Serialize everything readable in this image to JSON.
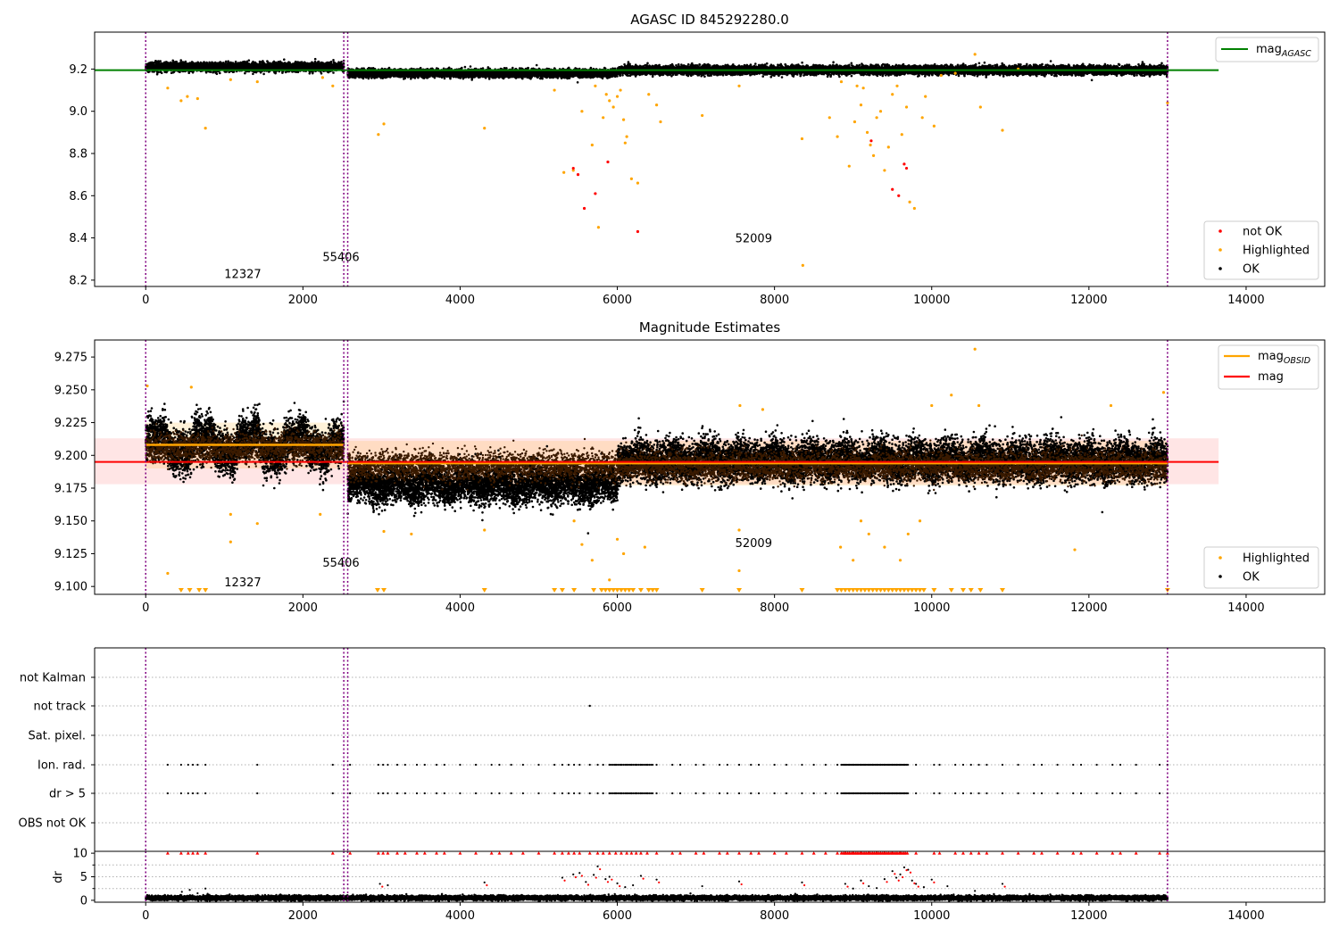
{
  "colors": {
    "ok": "#000000",
    "highlighted": "#ffa500",
    "not_ok": "#ff0000",
    "agasc_line": "#008000",
    "mag_line": "#ff0000",
    "obsid_line": "#ffa500",
    "obs_boundary": "#800080"
  },
  "chart_data": [
    {
      "type": "scatter",
      "title": "AGASC ID 845292280.0",
      "xlim": [
        -650,
        15000
      ],
      "ylim": [
        8.17,
        9.375
      ],
      "xticks": [
        0,
        2000,
        4000,
        6000,
        8000,
        10000,
        12000,
        14000
      ],
      "yticks": [
        8.2,
        8.4,
        8.6,
        8.8,
        9.0,
        9.2
      ],
      "xticklabels": [
        "0",
        "2000",
        "4000",
        "6000",
        "8000",
        "10000",
        "12000",
        "14000"
      ],
      "yticklabels": [
        "8.2",
        "8.4",
        "8.6",
        "8.8",
        "9.0",
        "9.2"
      ],
      "obs_boundaries": [
        0,
        2520,
        2570,
        13000
      ],
      "reference_line": {
        "name": "mag",
        "subscript": "AGASC",
        "y": 9.195,
        "x": [
          -650,
          13650
        ]
      },
      "legend_lines": [
        {
          "name": "mag",
          "subscript": "AGASC"
        }
      ],
      "legend_points": [
        {
          "name": "not OK",
          "key": "not_ok"
        },
        {
          "name": "Highlighted",
          "key": "highlighted"
        },
        {
          "name": "OK",
          "key": "ok"
        }
      ],
      "obsid_labels": [
        {
          "text": "12327",
          "x": 1000,
          "y": 8.21
        },
        {
          "text": "55406",
          "x": 2250,
          "y": 8.29
        },
        {
          "text": "52009",
          "x": 7500,
          "y": 8.38
        }
      ],
      "ok_bands": [
        {
          "x": [
            0,
            2520
          ],
          "y_center": 9.21,
          "spread": 0.022
        },
        {
          "x": [
            2570,
            6000
          ],
          "y_center": 9.18,
          "spread": 0.02
        },
        {
          "x": [
            6000,
            13000
          ],
          "y_center": 9.195,
          "spread": 0.022
        }
      ],
      "highlighted_points": [
        [
          280,
          9.11
        ],
        [
          450,
          9.05
        ],
        [
          530,
          9.07
        ],
        [
          660,
          9.06
        ],
        [
          760,
          8.92
        ],
        [
          1080,
          9.15
        ],
        [
          1420,
          9.14
        ],
        [
          2250,
          9.16
        ],
        [
          2380,
          9.12
        ],
        [
          2960,
          8.89
        ],
        [
          3030,
          8.94
        ],
        [
          4310,
          8.92
        ],
        [
          5200,
          9.1
        ],
        [
          5320,
          8.71
        ],
        [
          5440,
          8.72
        ],
        [
          5550,
          9.0
        ],
        [
          5680,
          8.84
        ],
        [
          5720,
          9.12
        ],
        [
          5760,
          8.45
        ],
        [
          5820,
          8.97
        ],
        [
          5860,
          9.08
        ],
        [
          5900,
          9.05
        ],
        [
          5950,
          9.02
        ],
        [
          6000,
          9.07
        ],
        [
          6040,
          9.1
        ],
        [
          6080,
          8.96
        ],
        [
          6100,
          8.85
        ],
        [
          6120,
          8.88
        ],
        [
          6180,
          8.68
        ],
        [
          6260,
          8.66
        ],
        [
          6400,
          9.08
        ],
        [
          6500,
          9.03
        ],
        [
          6550,
          8.95
        ],
        [
          7080,
          8.98
        ],
        [
          7550,
          9.12
        ],
        [
          8350,
          8.87
        ],
        [
          8360,
          8.27
        ],
        [
          8700,
          8.97
        ],
        [
          8800,
          8.88
        ],
        [
          8850,
          9.14
        ],
        [
          8950,
          8.74
        ],
        [
          9020,
          8.95
        ],
        [
          9050,
          9.12
        ],
        [
          9100,
          9.03
        ],
        [
          9130,
          9.11
        ],
        [
          9180,
          8.9
        ],
        [
          9220,
          8.84
        ],
        [
          9260,
          8.79
        ],
        [
          9300,
          8.97
        ],
        [
          9350,
          9.0
        ],
        [
          9400,
          8.72
        ],
        [
          9450,
          8.83
        ],
        [
          9500,
          9.08
        ],
        [
          9560,
          9.12
        ],
        [
          9620,
          8.89
        ],
        [
          9680,
          9.02
        ],
        [
          9720,
          8.57
        ],
        [
          9780,
          8.54
        ],
        [
          9880,
          8.97
        ],
        [
          9920,
          9.07
        ],
        [
          10030,
          8.93
        ],
        [
          10120,
          9.17
        ],
        [
          10300,
          9.18
        ],
        [
          10550,
          9.27
        ],
        [
          10620,
          9.02
        ],
        [
          10900,
          8.91
        ],
        [
          11100,
          9.2
        ],
        [
          13000,
          9.04
        ]
      ],
      "not_ok_points": [
        [
          5440,
          8.73
        ],
        [
          5500,
          8.7
        ],
        [
          5580,
          8.54
        ],
        [
          5720,
          8.61
        ],
        [
          5880,
          8.76
        ],
        [
          6260,
          8.43
        ],
        [
          9230,
          8.86
        ],
        [
          9500,
          8.63
        ],
        [
          9580,
          8.6
        ],
        [
          9650,
          8.75
        ],
        [
          9680,
          8.73
        ]
      ]
    },
    {
      "type": "scatter",
      "title": "Magnitude Estimates",
      "xlim": [
        -650,
        15000
      ],
      "ylim": [
        9.094,
        9.288
      ],
      "xticks": [
        0,
        2000,
        4000,
        6000,
        8000,
        10000,
        12000,
        14000
      ],
      "yticks": [
        9.1,
        9.125,
        9.15,
        9.175,
        9.2,
        9.225,
        9.25,
        9.275
      ],
      "xticklabels": [
        "0",
        "2000",
        "4000",
        "6000",
        "8000",
        "10000",
        "12000",
        "14000"
      ],
      "yticklabels": [
        "9.100",
        "9.125",
        "9.150",
        "9.175",
        "9.200",
        "9.225",
        "9.250",
        "9.275"
      ],
      "obs_boundaries": [
        0,
        2520,
        2570,
        13000
      ],
      "mag_line": {
        "name": "mag",
        "y": 9.195,
        "x": [
          -650,
          13650
        ],
        "band": [
          9.178,
          9.213
        ]
      },
      "obsid_segments": [
        {
          "x": [
            0,
            2520
          ],
          "y": 9.208,
          "band": [
            9.19,
            9.225
          ]
        },
        {
          "x": [
            2570,
            13000
          ],
          "y": 9.194,
          "band": [
            9.177,
            9.211
          ]
        }
      ],
      "legend_lines": [
        {
          "name": "mag",
          "subscript": "OBSID",
          "key": "obsid_line"
        },
        {
          "name": "mag",
          "subscript": "",
          "key": "mag_line"
        }
      ],
      "legend_points": [
        {
          "name": "Highlighted",
          "key": "highlighted"
        },
        {
          "name": "OK",
          "key": "ok"
        }
      ],
      "obsid_labels": [
        {
          "text": "12327",
          "x": 1000,
          "y": 9.1
        },
        {
          "text": "55406",
          "x": 2250,
          "y": 9.115
        },
        {
          "text": "52009",
          "x": 7500,
          "y": 9.13
        }
      ],
      "ok_bands": [
        {
          "x": [
            0,
            2520
          ],
          "y_center": 9.208,
          "spread": 0.018
        },
        {
          "x": [
            2570,
            6000
          ],
          "y_center": 9.178,
          "spread": 0.016
        },
        {
          "x": [
            6000,
            13000
          ],
          "y_center": 9.196,
          "spread": 0.017
        }
      ],
      "highlighted_points": [
        [
          20,
          9.253
        ],
        [
          580,
          9.252
        ],
        [
          1080,
          9.155
        ],
        [
          1080,
          9.134
        ],
        [
          1420,
          9.148
        ],
        [
          2220,
          9.155
        ],
        [
          280,
          9.11
        ],
        [
          3030,
          9.142
        ],
        [
          3380,
          9.14
        ],
        [
          4310,
          9.143
        ],
        [
          5450,
          9.15
        ],
        [
          5550,
          9.132
        ],
        [
          5680,
          9.12
        ],
        [
          5900,
          9.105
        ],
        [
          6000,
          9.136
        ],
        [
          6080,
          9.125
        ],
        [
          6350,
          9.13
        ],
        [
          7550,
          9.143
        ],
        [
          7550,
          9.112
        ],
        [
          7560,
          9.238
        ],
        [
          7850,
          9.235
        ],
        [
          8840,
          9.13
        ],
        [
          9000,
          9.12
        ],
        [
          9100,
          9.15
        ],
        [
          9200,
          9.14
        ],
        [
          9400,
          9.13
        ],
        [
          9600,
          9.12
        ],
        [
          9700,
          9.14
        ],
        [
          9850,
          9.15
        ],
        [
          10000,
          9.238
        ],
        [
          10250,
          9.246
        ],
        [
          10550,
          9.281
        ],
        [
          10600,
          9.238
        ],
        [
          11820,
          9.128
        ],
        [
          12280,
          9.238
        ],
        [
          12950,
          9.248
        ]
      ],
      "highlighted_low_markers": [
        450,
        560,
        680,
        760,
        2950,
        3030,
        4310,
        5200,
        5300,
        5450,
        5700,
        5800,
        5850,
        5900,
        5950,
        6000,
        6050,
        6100,
        6150,
        6200,
        6300,
        6400,
        6450,
        6500,
        7080,
        7550,
        8350,
        8800,
        8850,
        8900,
        8950,
        9000,
        9050,
        9100,
        9150,
        9200,
        9250,
        9300,
        9350,
        9400,
        9450,
        9500,
        9550,
        9600,
        9650,
        9700,
        9750,
        9800,
        9850,
        9900,
        10030,
        10250,
        10400,
        10500,
        10620,
        10900,
        13000
      ]
    },
    {
      "type": "scatter",
      "title": "",
      "xlim": [
        -650,
        15000
      ],
      "categories": [
        "not Kalman",
        "not track",
        "Sat. pixel.",
        "Ion. rad.",
        "dr > 5",
        "OBS not OK"
      ],
      "obs_boundaries": [
        0,
        2520,
        2570,
        13000
      ],
      "not_track_points": [
        5650
      ],
      "flag_x": [
        280,
        450,
        540,
        600,
        660,
        760,
        1420,
        2380,
        2600,
        2960,
        3020,
        3080,
        3200,
        3300,
        3450,
        3550,
        3700,
        3800,
        4000,
        4200,
        4400,
        4500,
        4650,
        4800,
        5000,
        5200,
        5300,
        5380,
        5450,
        5520,
        5650,
        5750,
        5820,
        5900,
        5980,
        6050,
        6120,
        6180,
        6240,
        6300,
        6380,
        6500,
        6700,
        6800,
        7000,
        7100,
        7300,
        7400,
        7550,
        7700,
        7800,
        8000,
        8150,
        8350,
        8500,
        8650,
        8800,
        8900,
        8950,
        9000,
        9050,
        9100,
        9150,
        9200,
        9250,
        9300,
        9350,
        9400,
        9450,
        9500,
        9550,
        9600,
        9650,
        9800,
        10030,
        10100,
        10300,
        10400,
        10500,
        10600,
        10700,
        10900,
        11100,
        11300,
        11400,
        11600,
        11800,
        11900,
        12100,
        12300,
        12400,
        12600,
        12900,
        13000
      ]
    },
    {
      "type": "scatter",
      "title": "",
      "ylabel": "dr",
      "xlim": [
        -650,
        15000
      ],
      "ylim": [
        -0.4,
        10.4
      ],
      "xticks": [
        0,
        2000,
        4000,
        6000,
        8000,
        10000,
        12000,
        14000
      ],
      "yticks": [
        0,
        5,
        10
      ],
      "xticklabels": [
        "0",
        "2000",
        "4000",
        "6000",
        "8000",
        "10000",
        "12000",
        "14000"
      ],
      "yticklabels": [
        "0",
        "5",
        "10"
      ],
      "obs_boundaries": [
        0,
        2520,
        2570,
        13000
      ],
      "ok_band": {
        "x": [
          0,
          13000
        ],
        "y_center": 0.5,
        "spread": 0.5
      },
      "scattered_points": [
        [
          460,
          1.8
        ],
        [
          560,
          2.2
        ],
        [
          660,
          1.5
        ],
        [
          760,
          2.5
        ],
        [
          2980,
          3.5
        ],
        [
          3080,
          3.2
        ],
        [
          4310,
          3.8
        ],
        [
          5300,
          4.8
        ],
        [
          5440,
          5.5
        ],
        [
          5520,
          5.8
        ],
        [
          5600,
          3.9
        ],
        [
          5700,
          5.4
        ],
        [
          5750,
          7.2
        ],
        [
          5850,
          4.5
        ],
        [
          5900,
          5.0
        ],
        [
          6000,
          3.6
        ],
        [
          6100,
          2.8
        ],
        [
          6200,
          3.2
        ],
        [
          6300,
          5.2
        ],
        [
          6500,
          4.4
        ],
        [
          7080,
          3.0
        ],
        [
          7550,
          4.0
        ],
        [
          8350,
          3.8
        ],
        [
          8900,
          3.5
        ],
        [
          9000,
          2.5
        ],
        [
          9100,
          4.2
        ],
        [
          9200,
          3.0
        ],
        [
          9300,
          2.6
        ],
        [
          9400,
          4.5
        ],
        [
          9500,
          6.2
        ],
        [
          9550,
          4.8
        ],
        [
          9600,
          5.5
        ],
        [
          9650,
          7.0
        ],
        [
          9700,
          6.5
        ],
        [
          9750,
          4.2
        ],
        [
          9800,
          3.5
        ],
        [
          9900,
          2.8
        ],
        [
          10000,
          4.4
        ],
        [
          10200,
          3.0
        ],
        [
          10550,
          2.0
        ],
        [
          10900,
          3.5
        ]
      ],
      "clipped_x": [
        280,
        450,
        540,
        600,
        660,
        760,
        1420,
        2380,
        2600,
        2960,
        3020,
        3080,
        3200,
        3300,
        3450,
        3550,
        3700,
        3800,
        4000,
        4200,
        4400,
        4500,
        4650,
        4800,
        5000,
        5200,
        5300,
        5380,
        5450,
        5520,
        5650,
        5750,
        5820,
        5900,
        5980,
        6050,
        6120,
        6180,
        6240,
        6300,
        6380,
        6500,
        6700,
        6800,
        7000,
        7100,
        7300,
        7400,
        7550,
        7700,
        7800,
        8000,
        8150,
        8350,
        8500,
        8650,
        8800,
        8900,
        8950,
        9000,
        9050,
        9100,
        9150,
        9200,
        9250,
        9300,
        9350,
        9400,
        9450,
        9500,
        9550,
        9600,
        9650,
        9800,
        10030,
        10100,
        10300,
        10400,
        10500,
        10600,
        10700,
        10900,
        11100,
        11300,
        11400,
        11600,
        11800,
        11900,
        12100,
        12300,
        12400,
        12600,
        12900,
        13000
      ]
    }
  ]
}
